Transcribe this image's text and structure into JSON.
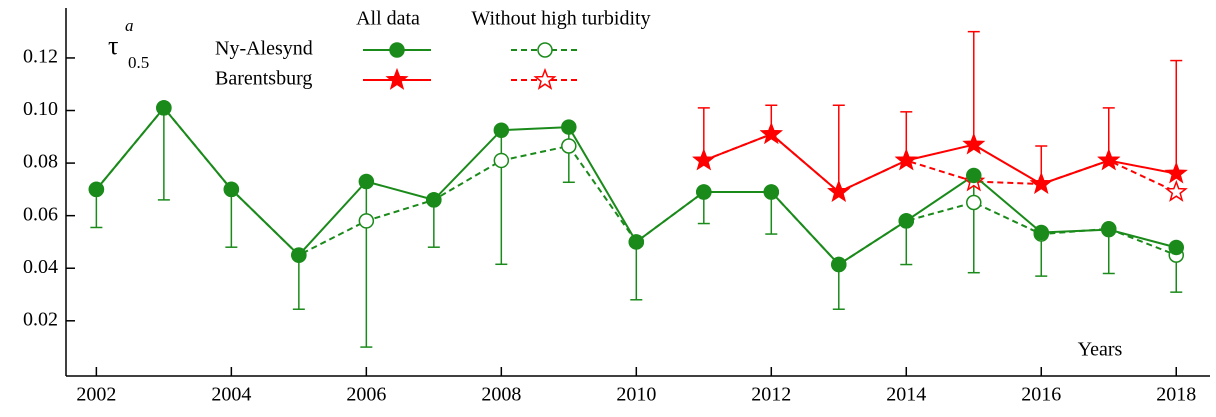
{
  "chart_data": {
    "type": "line",
    "ylabel": {
      "symbol": "τ",
      "sup": "a",
      "sub": "0.5"
    },
    "xlabel": "Years",
    "legend": {
      "columns": [
        "All data",
        "Without high turbidity"
      ],
      "rows": [
        "Ny-Alesynd",
        "Barentsburg"
      ]
    },
    "x": [
      2002,
      2003,
      2004,
      2005,
      2006,
      2007,
      2008,
      2009,
      2010,
      2011,
      2012,
      2013,
      2014,
      2015,
      2016,
      2017,
      2018
    ],
    "series": [
      {
        "legend_row": 0,
        "legend_col": 0,
        "color": "#1a8a1a",
        "marker": "circle",
        "filled": true,
        "dashed": false,
        "error_side": "lower",
        "values": [
          0.07,
          0.101,
          0.07,
          0.045,
          0.073,
          0.066,
          0.0925,
          0.0937,
          0.05,
          0.069,
          0.069,
          0.0414,
          0.058,
          0.0753,
          0.0536,
          0.0547,
          0.0479
        ],
        "errors": [
          0.0145,
          0.035,
          0.022,
          0.0206,
          0.063,
          0.018,
          0.051,
          0.021,
          0.022,
          0.012,
          0.016,
          0.017,
          0.0166,
          0.037,
          0.0166,
          0.0167,
          0.017
        ]
      },
      {
        "legend_row": 0,
        "legend_col": 1,
        "color": "#1a8a1a",
        "marker": "circle",
        "filled": false,
        "dashed": true,
        "values": [
          0.07,
          0.101,
          0.07,
          0.045,
          0.058,
          0.066,
          0.081,
          0.0865,
          0.05,
          0.069,
          0.069,
          0.0414,
          0.058,
          0.065,
          0.053,
          0.055,
          0.045
        ]
      },
      {
        "legend_row": 1,
        "legend_col": 0,
        "color": "#ff0000",
        "marker": "star",
        "filled": true,
        "dashed": false,
        "error_side": "upper",
        "values": [
          null,
          null,
          null,
          null,
          null,
          null,
          null,
          null,
          null,
          0.081,
          0.091,
          0.069,
          0.081,
          0.087,
          0.072,
          0.081,
          0.076
        ],
        "errors": [
          null,
          null,
          null,
          null,
          null,
          null,
          null,
          null,
          null,
          0.02,
          0.011,
          0.033,
          0.0185,
          0.043,
          0.0145,
          0.02,
          0.043
        ]
      },
      {
        "legend_row": 1,
        "legend_col": 1,
        "color": "#ff0000",
        "marker": "star",
        "filled": false,
        "dashed": true,
        "values": [
          null,
          null,
          null,
          null,
          null,
          null,
          null,
          null,
          null,
          0.081,
          0.091,
          0.069,
          0.081,
          0.073,
          0.072,
          0.081,
          0.069
        ]
      }
    ],
    "xlim": [
      2001.55,
      2018.5
    ],
    "xticks": [
      2002,
      2004,
      2006,
      2008,
      2010,
      2012,
      2014,
      2016,
      2018
    ],
    "ylim": [
      -0.001,
      0.139
    ],
    "yticks": [
      0.02,
      0.04,
      0.06,
      0.08,
      {
        "value": 0.1,
        "label": "0.10"
      },
      0.12
    ]
  }
}
